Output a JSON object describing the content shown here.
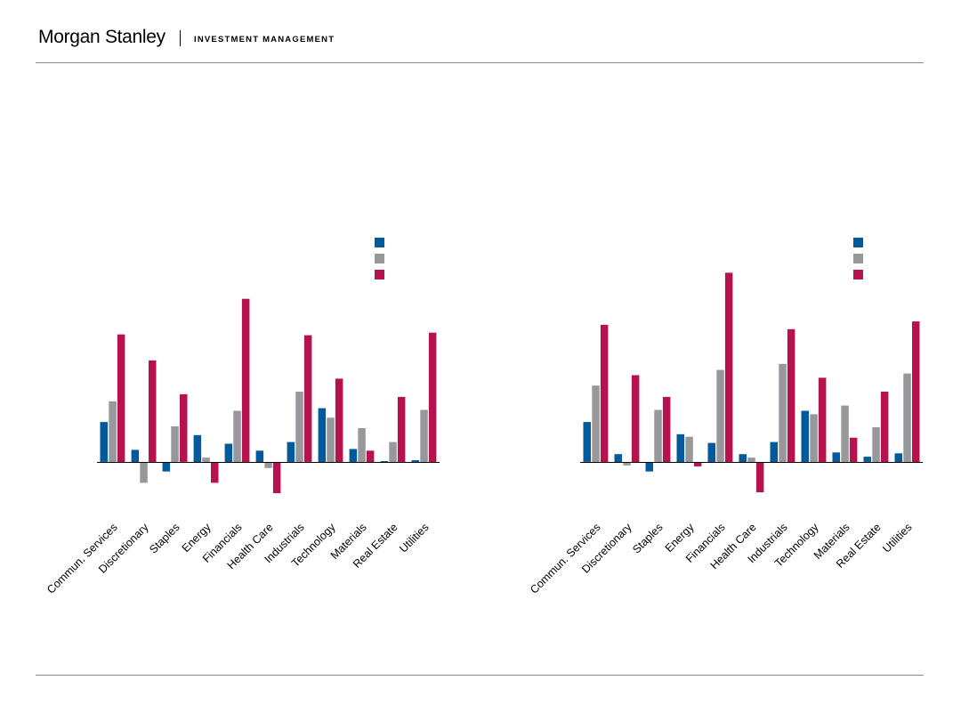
{
  "header": {
    "brand": "Morgan Stanley",
    "subtitle": "INVESTMENT MANAGEMENT"
  },
  "colors": {
    "series": [
      "#005a9c",
      "#97979c",
      "#b5124f"
    ],
    "rule": "#8c8c8c"
  },
  "chart_data": [
    {
      "type": "bar",
      "categories": [
        "Commun. Services",
        "Discretionary",
        "Staples",
        "Energy",
        "Financials",
        "Health Care",
        "Industrials",
        "Technology",
        "Materials",
        "Real Estate",
        "Utilities"
      ],
      "series": [
        {
          "values": [
            4.6,
            1.4,
            -1.1,
            3.1,
            2.1,
            1.3,
            2.3,
            6.2,
            1.5,
            0.1,
            0.2
          ]
        },
        {
          "values": [
            7.0,
            -2.4,
            4.1,
            0.5,
            5.9,
            -0.7,
            8.1,
            5.1,
            3.9,
            2.3,
            6.0
          ]
        },
        {
          "values": [
            14.7,
            11.7,
            7.8,
            -2.4,
            18.8,
            -3.6,
            14.6,
            9.6,
            1.3,
            7.5,
            14.9
          ]
        }
      ],
      "legend": "top-right",
      "grid": false
    },
    {
      "type": "bar",
      "categories": [
        "Commun. Services",
        "Discretionary",
        "Staples",
        "Energy",
        "Financials",
        "Health Care",
        "Industrials",
        "Technology",
        "Materials",
        "Real Estate",
        "Utilities"
      ],
      "series": [
        {
          "values": [
            4.6,
            0.9,
            -1.1,
            3.2,
            2.2,
            0.9,
            2.3,
            5.9,
            1.1,
            0.6,
            1.0
          ]
        },
        {
          "values": [
            8.8,
            -0.4,
            6.0,
            2.9,
            10.6,
            0.5,
            11.3,
            5.5,
            6.5,
            4.0,
            10.2
          ]
        },
        {
          "values": [
            15.8,
            10.0,
            7.5,
            -0.5,
            21.8,
            -3.5,
            15.3,
            9.7,
            2.8,
            8.1,
            16.2
          ]
        }
      ],
      "legend": "top-right",
      "grid": false
    }
  ]
}
